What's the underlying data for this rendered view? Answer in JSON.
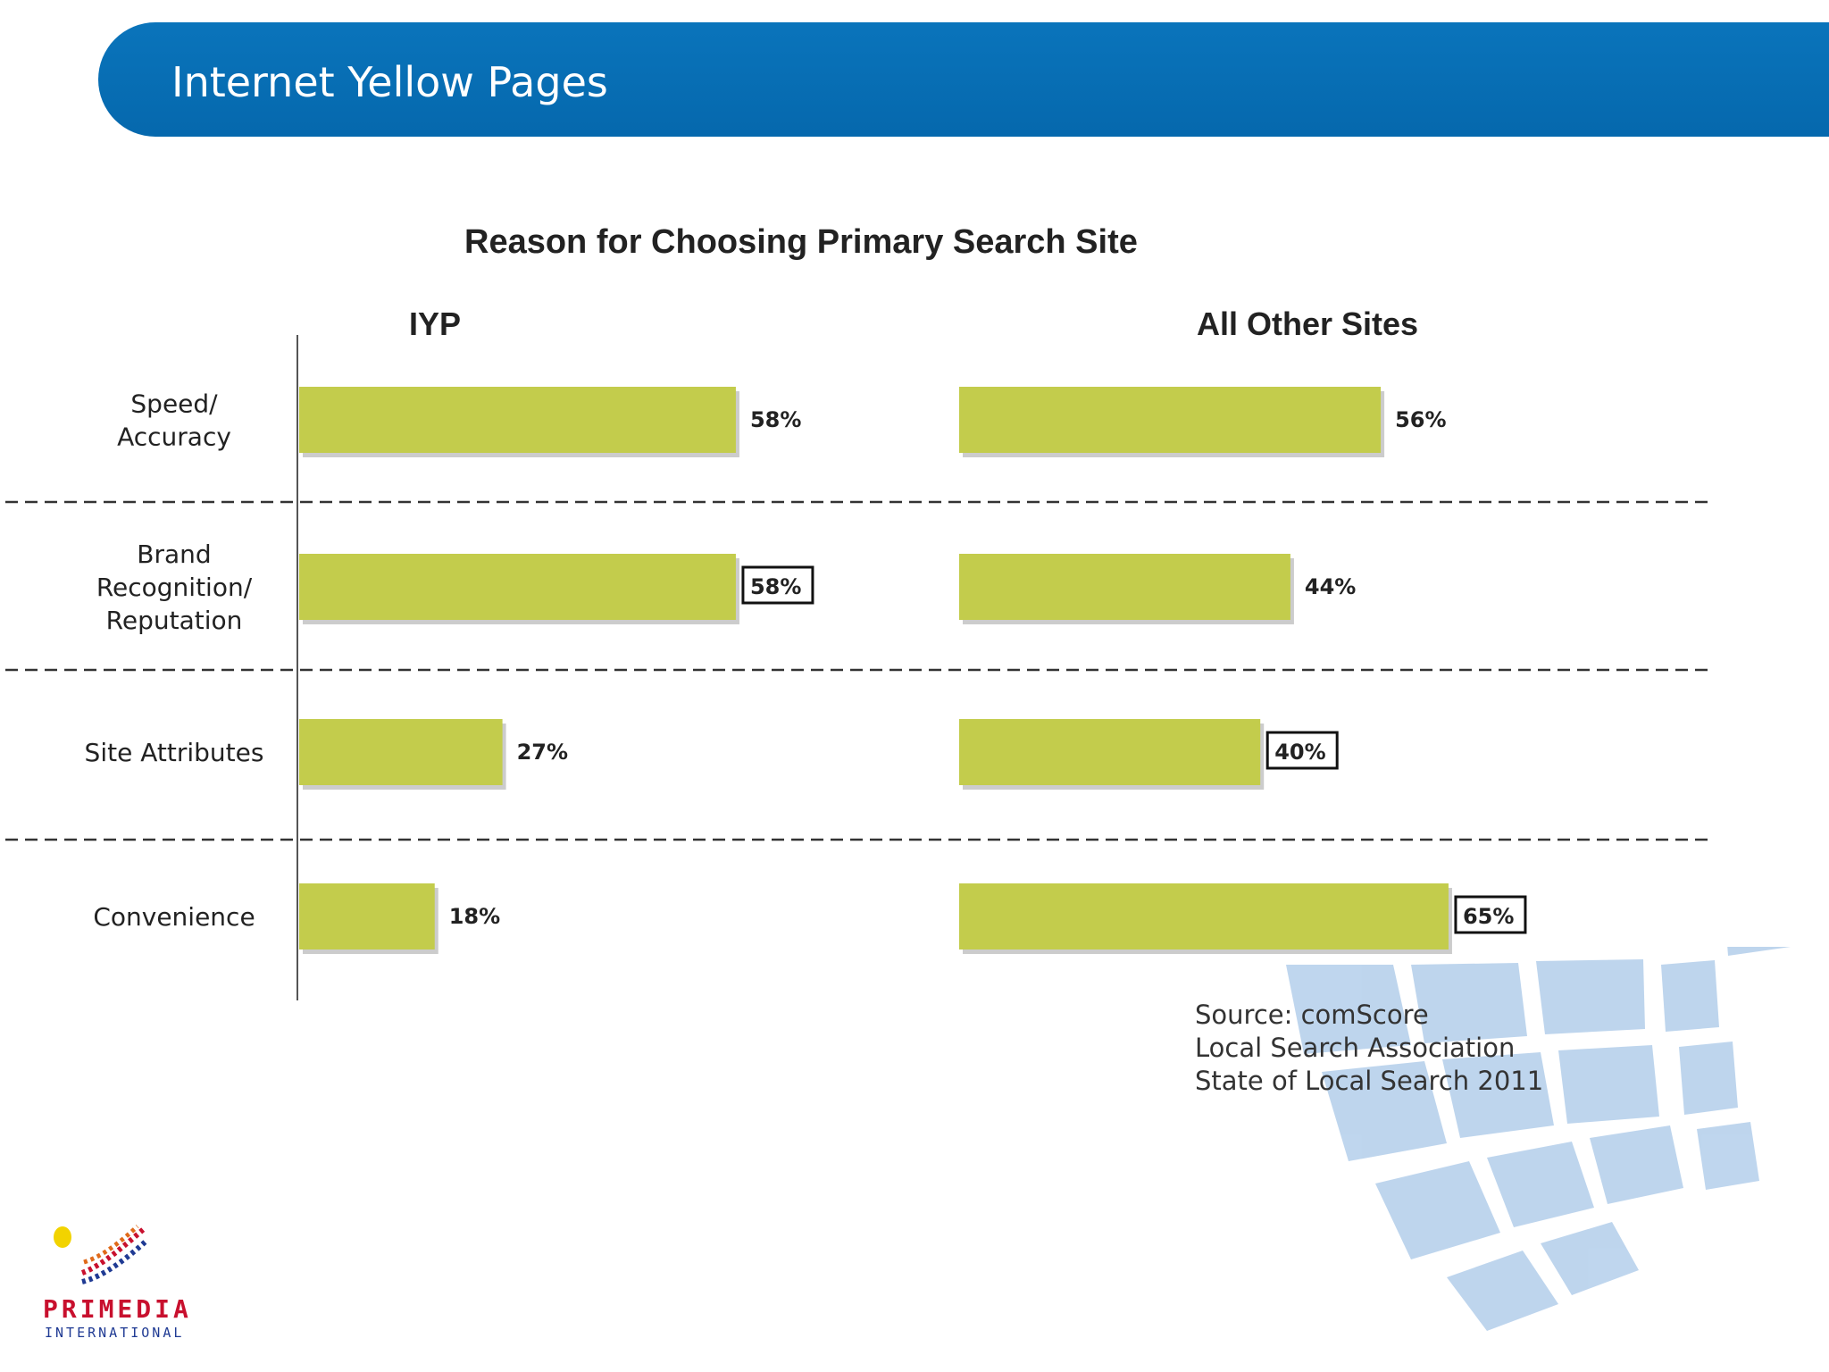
{
  "slide": {
    "title": "Internet Yellow Pages"
  },
  "chart_data": {
    "type": "bar",
    "orientation": "horizontal",
    "title": "Reason for Choosing Primary Search Site",
    "categories": [
      "Speed/ Accuracy",
      "Brand Recognition/ Reputation",
      "Site Attributes",
      "Convenience"
    ],
    "category_lines": [
      [
        "Speed/",
        "Accuracy"
      ],
      [
        "Brand",
        "Recognition/",
        "Reputation"
      ],
      [
        "Site Attributes"
      ],
      [
        "Convenience"
      ]
    ],
    "series": [
      {
        "name": "IYP",
        "values": [
          58,
          58,
          27,
          18
        ],
        "labels": [
          "58%",
          "58%",
          "27%",
          "18%"
        ],
        "boxed": [
          false,
          true,
          false,
          false
        ]
      },
      {
        "name": "All Other Sites",
        "values": [
          56,
          44,
          40,
          65
        ],
        "labels": [
          "56%",
          "44%",
          "40%",
          "65%"
        ],
        "boxed": [
          false,
          false,
          true,
          true
        ]
      }
    ],
    "value_unit": "%",
    "bar_color": "#c3cc4c",
    "grid": false,
    "category_separators": "dashed"
  },
  "source": {
    "lines": [
      "Source: comScore",
      "Local Search Association",
      "State of Local Search 2011"
    ]
  },
  "logo": {
    "name": "PRIMEDIA",
    "subtitle": "INTERNATIONAL"
  },
  "colors": {
    "header": "#0a6cb2",
    "bar": "#c3cc4c",
    "logo_red": "#c8102e",
    "logo_blue": "#1f3a93"
  }
}
